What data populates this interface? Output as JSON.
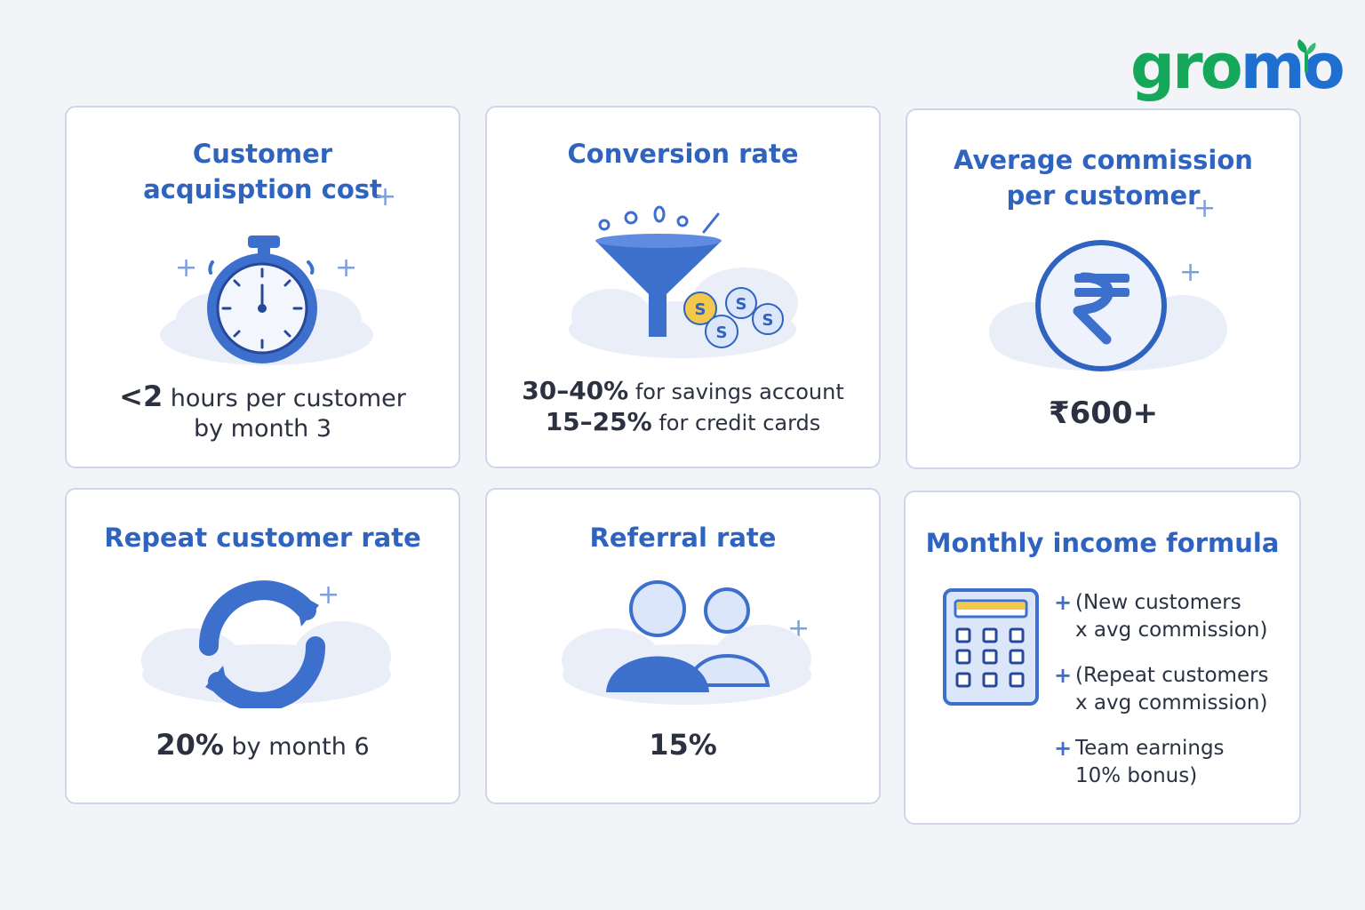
{
  "brand": {
    "logo_green": "gro",
    "logo_blue": "mo"
  },
  "cards": [
    {
      "title": "Customer\nacquisption cost",
      "value_bold": "<2",
      "value_rest": " hours per customer",
      "value_line2": "by month 3"
    },
    {
      "title": "Conversion rate",
      "line1_bold": "30–40%",
      "line1_rest": " for savings account",
      "line2_bold": "15–25%",
      "line2_rest": " for credit cards"
    },
    {
      "title": "Average commission\nper customer",
      "value": "₹600+"
    },
    {
      "title": "Repeat customer rate",
      "value_bold": "20%",
      "value_rest": " by month 6"
    },
    {
      "title": "Referral rate",
      "value": "15%"
    },
    {
      "title": "Monthly income formula",
      "items": [
        {
          "text": "(New customers\nx avg commission)"
        },
        {
          "text": "(Repeat customers\nx avg commission)"
        },
        {
          "text": "Team earnings\n10% bonus)"
        }
      ]
    }
  ],
  "colors": {
    "accent": "#2e63bf",
    "icon_fill": "#3d6fcd",
    "green": "#16a85a",
    "coin": "#f2c94c"
  }
}
